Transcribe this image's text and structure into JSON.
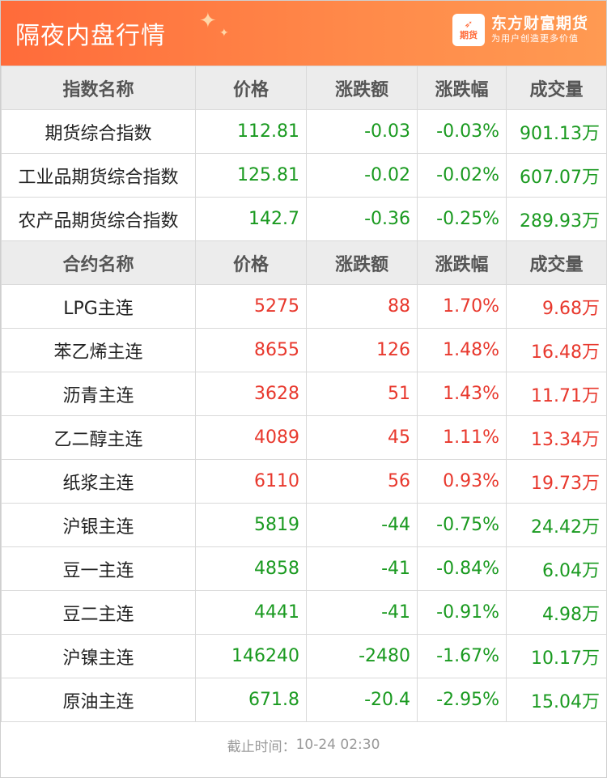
{
  "header": {
    "title": "隔夜内盘行情",
    "brand_name": "东方财富期货",
    "brand_slogan": "为用户创造更多价值",
    "logo_text": "期货"
  },
  "index_headers": [
    "指数名称",
    "价格",
    "涨跌额",
    "涨跌幅",
    "成交量"
  ],
  "indices": [
    {
      "name": "期货综合指数",
      "price": "112.81",
      "change": "-0.03",
      "pct": "-0.03%",
      "volume": "901.13万",
      "dir": "down"
    },
    {
      "name": "工业品期货综合指数",
      "price": "125.81",
      "change": "-0.02",
      "pct": "-0.02%",
      "volume": "607.07万",
      "dir": "down"
    },
    {
      "name": "农产品期货综合指数",
      "price": "142.7",
      "change": "-0.36",
      "pct": "-0.25%",
      "volume": "289.93万",
      "dir": "down"
    }
  ],
  "contract_headers": [
    "合约名称",
    "价格",
    "涨跌额",
    "涨跌幅",
    "成交量"
  ],
  "contracts": [
    {
      "name": "LPG主连",
      "price": "5275",
      "change": "88",
      "pct": "1.70%",
      "volume": "9.68万",
      "dir": "up"
    },
    {
      "name": "苯乙烯主连",
      "price": "8655",
      "change": "126",
      "pct": "1.48%",
      "volume": "16.48万",
      "dir": "up"
    },
    {
      "name": "沥青主连",
      "price": "3628",
      "change": "51",
      "pct": "1.43%",
      "volume": "11.71万",
      "dir": "up"
    },
    {
      "name": "乙二醇主连",
      "price": "4089",
      "change": "45",
      "pct": "1.11%",
      "volume": "13.34万",
      "dir": "up"
    },
    {
      "name": "纸浆主连",
      "price": "6110",
      "change": "56",
      "pct": "0.93%",
      "volume": "19.73万",
      "dir": "up"
    },
    {
      "name": "沪银主连",
      "price": "5819",
      "change": "-44",
      "pct": "-0.75%",
      "volume": "24.42万",
      "dir": "down"
    },
    {
      "name": "豆一主连",
      "price": "4858",
      "change": "-41",
      "pct": "-0.84%",
      "volume": "6.04万",
      "dir": "down"
    },
    {
      "name": "豆二主连",
      "price": "4441",
      "change": "-41",
      "pct": "-0.91%",
      "volume": "4.98万",
      "dir": "down"
    },
    {
      "name": "沪镍主连",
      "price": "146240",
      "change": "-2480",
      "pct": "-1.67%",
      "volume": "10.17万",
      "dir": "down"
    },
    {
      "name": "原油主连",
      "price": "671.8",
      "change": "-20.4",
      "pct": "-2.95%",
      "volume": "15.04万",
      "dir": "down"
    }
  ],
  "footer": {
    "label": "截止时间：",
    "time": "10-24 02:30"
  },
  "colors": {
    "up": "#e8382d",
    "down": "#1a9a20",
    "header_orange": "#ff7a45"
  }
}
